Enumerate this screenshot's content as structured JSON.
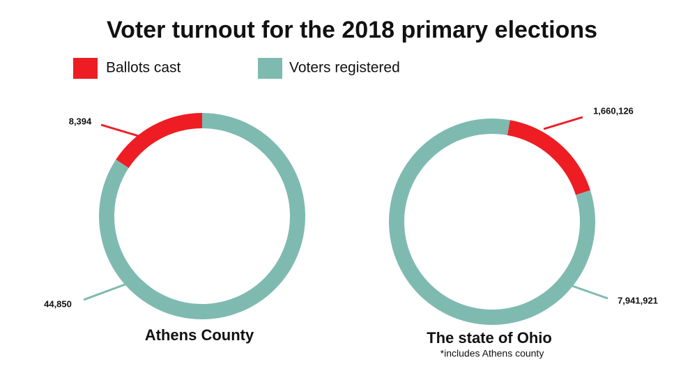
{
  "title": "Voter turnout for the 2018 primary elections",
  "chart_data": [
    {
      "type": "donut",
      "title": "Athens County",
      "categories": [
        "Ballots cast",
        "Voters registered"
      ],
      "values": [
        8394,
        44850
      ],
      "value_labels": [
        "8,394",
        "44,850"
      ],
      "colors": [
        "#ee1d23",
        "#7fbab0"
      ]
    },
    {
      "type": "donut",
      "title": "The state of Ohio",
      "subtitle": "*includes Athens county",
      "categories": [
        "Ballots cast",
        "Voters registered"
      ],
      "values": [
        1660126,
        7941921
      ],
      "value_labels": [
        "1,660,126",
        "7,941,921"
      ],
      "colors": [
        "#ee1d23",
        "#7fbab0"
      ]
    }
  ]
}
